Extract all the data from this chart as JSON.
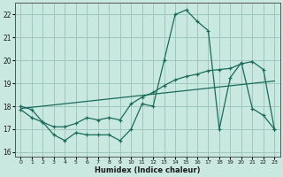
{
  "background_color": "#c8e8e0",
  "grid_color": "#a0c8c0",
  "line_color": "#1a6b5a",
  "xlabel": "Humidex (Indice chaleur)",
  "xlim": [
    -0.5,
    23.5
  ],
  "ylim": [
    15.8,
    22.5
  ],
  "yticks": [
    16,
    17,
    18,
    19,
    20,
    21,
    22
  ],
  "xticks": [
    0,
    1,
    2,
    3,
    4,
    5,
    6,
    7,
    8,
    9,
    10,
    11,
    12,
    13,
    14,
    15,
    16,
    17,
    18,
    19,
    20,
    21,
    22,
    23
  ],
  "line1_x": [
    0,
    1,
    2,
    3,
    4,
    5,
    6,
    7,
    8,
    9,
    10,
    11,
    12,
    13,
    14,
    15,
    16,
    17,
    18,
    19,
    20,
    21,
    22,
    23
  ],
  "line1_y": [
    18.0,
    17.85,
    17.3,
    16.75,
    16.5,
    16.85,
    16.75,
    16.75,
    16.75,
    16.5,
    17.0,
    18.1,
    18.0,
    20.0,
    22.0,
    22.2,
    21.7,
    21.3,
    17.0,
    19.25,
    19.9,
    17.9,
    17.6,
    17.0
  ],
  "line2_x": [
    0,
    1,
    2,
    3,
    4,
    5,
    6,
    7,
    8,
    9,
    10,
    11,
    12,
    13,
    14,
    15,
    16,
    17,
    18,
    19,
    20,
    21,
    22,
    23
  ],
  "line2_y": [
    17.85,
    17.5,
    17.3,
    17.1,
    17.1,
    17.25,
    17.5,
    17.4,
    17.5,
    17.4,
    18.1,
    18.4,
    18.6,
    18.9,
    19.15,
    19.3,
    19.4,
    19.55,
    19.6,
    19.65,
    19.85,
    19.95,
    19.6,
    17.0
  ],
  "line3_x": [
    0,
    23
  ],
  "line3_y": [
    17.9,
    19.1
  ]
}
